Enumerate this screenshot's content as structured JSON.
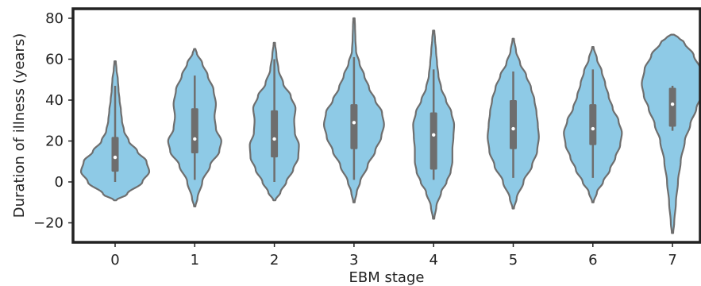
{
  "chart_data": {
    "type": "violin",
    "title": "",
    "xlabel": "EBM stage",
    "ylabel": "Duration of illness (years)",
    "categories": [
      "0",
      "1",
      "2",
      "3",
      "4",
      "5",
      "6",
      "7"
    ],
    "ylim": [
      -30,
      85
    ],
    "yticks": [
      -20,
      0,
      20,
      40,
      60,
      80
    ],
    "ytick_labels": [
      "−20",
      "0",
      "20",
      "40",
      "60",
      "80"
    ],
    "grid": false,
    "colors": {
      "fill": "#8ecae6",
      "edge": "#6e6e6e",
      "box": "#6e6e6e",
      "median": "#ffffff"
    },
    "violins": [
      {
        "category": "0",
        "median": 12,
        "q1": 5,
        "q3": 22,
        "whisker_low": 0,
        "whisker_high": 47,
        "profile": [
          [
            -9,
            0.03
          ],
          [
            -6,
            0.35
          ],
          [
            0,
            0.8
          ],
          [
            5,
            1.0
          ],
          [
            10,
            0.92
          ],
          [
            15,
            0.65
          ],
          [
            20,
            0.4
          ],
          [
            25,
            0.26
          ],
          [
            30,
            0.2
          ],
          [
            35,
            0.17
          ],
          [
            40,
            0.13
          ],
          [
            45,
            0.1
          ],
          [
            50,
            0.08
          ],
          [
            55,
            0.04
          ],
          [
            59,
            0.02
          ]
        ]
      },
      {
        "category": "1",
        "median": 21,
        "q1": 14,
        "q3": 36,
        "whisker_low": 1,
        "whisker_high": 52,
        "profile": [
          [
            -12,
            0.02
          ],
          [
            -8,
            0.08
          ],
          [
            0,
            0.22
          ],
          [
            8,
            0.45
          ],
          [
            15,
            0.72
          ],
          [
            20,
            0.78
          ],
          [
            26,
            0.62
          ],
          [
            32,
            0.58
          ],
          [
            38,
            0.62
          ],
          [
            45,
            0.55
          ],
          [
            52,
            0.38
          ],
          [
            58,
            0.22
          ],
          [
            63,
            0.06
          ],
          [
            65,
            0.02
          ]
        ]
      },
      {
        "category": "2",
        "median": 21,
        "q1": 12,
        "q3": 35,
        "whisker_low": 0,
        "whisker_high": 60,
        "profile": [
          [
            -9,
            0.03
          ],
          [
            -5,
            0.18
          ],
          [
            0,
            0.35
          ],
          [
            6,
            0.55
          ],
          [
            12,
            0.7
          ],
          [
            18,
            0.72
          ],
          [
            24,
            0.6
          ],
          [
            30,
            0.58
          ],
          [
            36,
            0.62
          ],
          [
            42,
            0.48
          ],
          [
            48,
            0.26
          ],
          [
            55,
            0.12
          ],
          [
            62,
            0.06
          ],
          [
            68,
            0.02
          ]
        ]
      },
      {
        "category": "3",
        "median": 29,
        "q1": 16,
        "q3": 38,
        "whisker_low": 1,
        "whisker_high": 61,
        "profile": [
          [
            -10,
            0.02
          ],
          [
            -5,
            0.08
          ],
          [
            0,
            0.18
          ],
          [
            8,
            0.4
          ],
          [
            15,
            0.62
          ],
          [
            22,
            0.8
          ],
          [
            28,
            0.88
          ],
          [
            34,
            0.82
          ],
          [
            40,
            0.62
          ],
          [
            46,
            0.44
          ],
          [
            52,
            0.3
          ],
          [
            58,
            0.16
          ],
          [
            64,
            0.06
          ],
          [
            70,
            0.04
          ],
          [
            76,
            0.03
          ],
          [
            80,
            0.02
          ]
        ]
      },
      {
        "category": "4",
        "median": 23,
        "q1": 6,
        "q3": 34,
        "whisker_low": 1,
        "whisker_high": 55,
        "profile": [
          [
            -18,
            0.02
          ],
          [
            -12,
            0.08
          ],
          [
            -5,
            0.22
          ],
          [
            0,
            0.38
          ],
          [
            5,
            0.5
          ],
          [
            10,
            0.55
          ],
          [
            16,
            0.55
          ],
          [
            22,
            0.58
          ],
          [
            28,
            0.6
          ],
          [
            34,
            0.52
          ],
          [
            40,
            0.36
          ],
          [
            46,
            0.22
          ],
          [
            52,
            0.14
          ],
          [
            58,
            0.1
          ],
          [
            64,
            0.07
          ],
          [
            70,
            0.04
          ],
          [
            74,
            0.02
          ]
        ]
      },
      {
        "category": "5",
        "median": 26,
        "q1": 16,
        "q3": 40,
        "whisker_low": 2,
        "whisker_high": 54,
        "profile": [
          [
            -13,
            0.02
          ],
          [
            -8,
            0.1
          ],
          [
            0,
            0.3
          ],
          [
            8,
            0.55
          ],
          [
            15,
            0.7
          ],
          [
            22,
            0.75
          ],
          [
            28,
            0.72
          ],
          [
            34,
            0.68
          ],
          [
            40,
            0.62
          ],
          [
            46,
            0.52
          ],
          [
            52,
            0.38
          ],
          [
            58,
            0.2
          ],
          [
            64,
            0.08
          ],
          [
            70,
            0.02
          ]
        ]
      },
      {
        "category": "6",
        "median": 26,
        "q1": 18,
        "q3": 38,
        "whisker_low": 2,
        "whisker_high": 55,
        "profile": [
          [
            -10,
            0.02
          ],
          [
            -5,
            0.12
          ],
          [
            0,
            0.3
          ],
          [
            6,
            0.5
          ],
          [
            12,
            0.66
          ],
          [
            18,
            0.8
          ],
          [
            24,
            0.85
          ],
          [
            30,
            0.75
          ],
          [
            36,
            0.58
          ],
          [
            42,
            0.46
          ],
          [
            48,
            0.36
          ],
          [
            54,
            0.26
          ],
          [
            60,
            0.12
          ],
          [
            66,
            0.02
          ]
        ]
      },
      {
        "category": "7",
        "median": 38,
        "q1": 27,
        "q3": 46,
        "whisker_low": 25,
        "whisker_high": 47,
        "profile": [
          [
            -25,
            0.02
          ],
          [
            -20,
            0.05
          ],
          [
            -10,
            0.1
          ],
          [
            0,
            0.16
          ],
          [
            10,
            0.24
          ],
          [
            20,
            0.36
          ],
          [
            28,
            0.52
          ],
          [
            36,
            0.7
          ],
          [
            42,
            0.84
          ],
          [
            48,
            0.9
          ],
          [
            55,
            0.82
          ],
          [
            62,
            0.62
          ],
          [
            68,
            0.35
          ],
          [
            71,
            0.15
          ],
          [
            72,
            0.04
          ]
        ]
      }
    ]
  }
}
